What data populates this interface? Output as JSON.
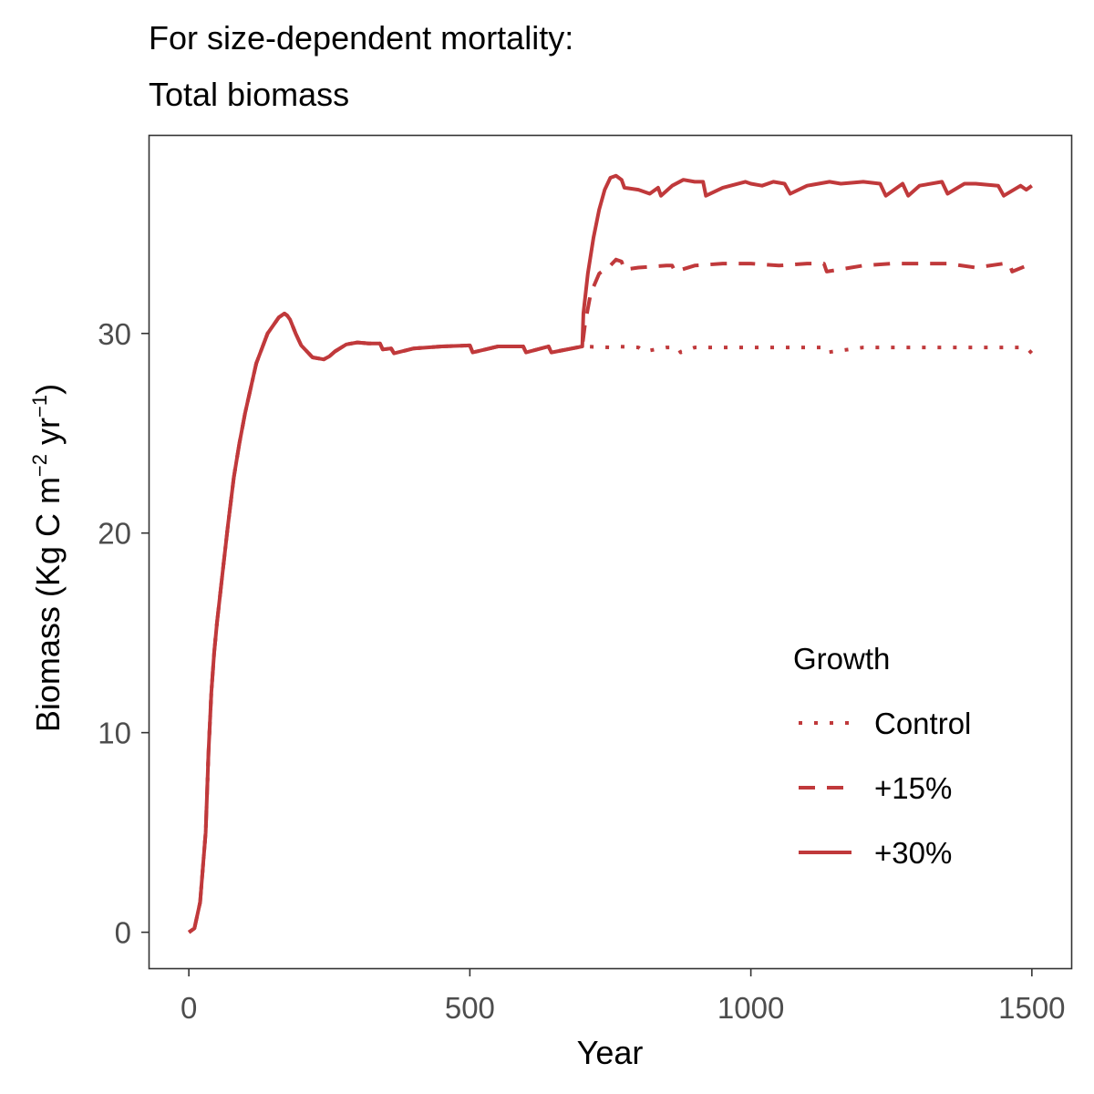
{
  "chart_data": {
    "type": "line",
    "title": "For size-dependent mortality:",
    "subtitle": "Total biomass",
    "xlabel": "Year",
    "ylabel": {
      "text": "Biomass (Kg C m",
      "sup1": "−2",
      "mid": " yr",
      "sup2": "−1",
      "end": ")"
    },
    "xlim": [
      -70,
      1570
    ],
    "ylim": [
      -1.8,
      39.9
    ],
    "xticks": [
      0,
      500,
      1000,
      1500
    ],
    "xtick_labels": [
      "0",
      "500",
      "1000",
      "1500"
    ],
    "yticks": [
      0,
      10,
      20,
      30
    ],
    "ytick_labels": [
      "0",
      "10",
      "20",
      "30"
    ],
    "grid": false,
    "color": "#c0393b",
    "legend": {
      "title": "Growth",
      "position": "right-inside",
      "items": [
        "Control",
        "+15%",
        "+30%"
      ]
    },
    "series": [
      {
        "name": "Control",
        "linestyle": "dotted",
        "x": [
          0,
          10,
          20,
          30,
          35,
          40,
          45,
          50,
          60,
          70,
          80,
          90,
          100,
          120,
          140,
          160,
          170,
          175,
          180,
          190,
          200,
          220,
          240,
          250,
          260,
          280,
          300,
          320,
          340,
          345,
          360,
          365,
          400,
          450,
          500,
          505,
          550,
          595,
          600,
          640,
          645,
          700,
          750,
          760,
          800,
          810,
          850,
          870,
          875,
          900,
          950,
          1000,
          1050,
          1100,
          1130,
          1135,
          1200,
          1250,
          1300,
          1350,
          1400,
          1450,
          1490,
          1500
        ],
        "y": [
          0.0,
          0.2,
          1.5,
          5.0,
          9.0,
          12.0,
          14.0,
          15.5,
          18.0,
          20.5,
          22.8,
          24.5,
          26.0,
          28.5,
          30.0,
          30.8,
          31.0,
          30.9,
          30.7,
          30.0,
          29.4,
          28.8,
          28.7,
          28.85,
          29.1,
          29.45,
          29.55,
          29.5,
          29.5,
          29.2,
          29.25,
          29.0,
          29.25,
          29.35,
          29.4,
          29.05,
          29.35,
          29.35,
          29.05,
          29.35,
          29.05,
          29.35,
          29.3,
          29.35,
          29.3,
          29.1,
          29.3,
          29.3,
          29.05,
          29.3,
          29.3,
          29.3,
          29.3,
          29.3,
          29.3,
          29.05,
          29.3,
          29.3,
          29.3,
          29.3,
          29.3,
          29.3,
          29.3,
          29.0
        ]
      },
      {
        "name": "+15%",
        "linestyle": "dashed",
        "x": [
          0,
          10,
          20,
          30,
          35,
          40,
          45,
          50,
          60,
          70,
          80,
          90,
          100,
          120,
          140,
          160,
          170,
          175,
          180,
          190,
          200,
          220,
          240,
          250,
          260,
          280,
          300,
          320,
          340,
          345,
          360,
          365,
          400,
          450,
          500,
          505,
          550,
          595,
          600,
          640,
          645,
          700,
          705,
          715,
          730,
          750,
          760,
          770,
          775,
          800,
          850,
          860,
          865,
          900,
          950,
          1000,
          1050,
          1100,
          1130,
          1135,
          1200,
          1250,
          1300,
          1350,
          1400,
          1450,
          1460,
          1465,
          1500
        ],
        "y": [
          0.0,
          0.2,
          1.5,
          5.0,
          9.0,
          12.0,
          14.0,
          15.5,
          18.0,
          20.5,
          22.8,
          24.5,
          26.0,
          28.5,
          30.0,
          30.8,
          31.0,
          30.9,
          30.7,
          30.0,
          29.4,
          28.8,
          28.7,
          28.85,
          29.1,
          29.45,
          29.55,
          29.5,
          29.5,
          29.2,
          29.25,
          29.0,
          29.25,
          29.35,
          29.4,
          29.05,
          29.35,
          29.35,
          29.05,
          29.35,
          29.05,
          29.35,
          30.5,
          32.0,
          33.0,
          33.4,
          33.7,
          33.6,
          33.2,
          33.3,
          33.4,
          33.4,
          33.1,
          33.4,
          33.5,
          33.5,
          33.4,
          33.5,
          33.5,
          33.1,
          33.4,
          33.5,
          33.5,
          33.5,
          33.3,
          33.5,
          33.5,
          33.1,
          33.5
        ]
      },
      {
        "name": "+30%",
        "linestyle": "solid",
        "x": [
          0,
          10,
          20,
          30,
          35,
          40,
          45,
          50,
          60,
          70,
          80,
          90,
          100,
          120,
          140,
          160,
          170,
          175,
          180,
          190,
          200,
          220,
          240,
          250,
          260,
          280,
          300,
          320,
          340,
          345,
          360,
          365,
          400,
          450,
          500,
          505,
          550,
          595,
          600,
          640,
          645,
          700,
          702,
          710,
          720,
          730,
          740,
          750,
          760,
          770,
          775,
          800,
          820,
          835,
          840,
          860,
          880,
          900,
          915,
          920,
          950,
          990,
          1000,
          1020,
          1040,
          1060,
          1070,
          1100,
          1140,
          1160,
          1200,
          1230,
          1240,
          1270,
          1280,
          1300,
          1340,
          1350,
          1380,
          1400,
          1440,
          1450,
          1480,
          1490,
          1500
        ],
        "y": [
          0.0,
          0.2,
          1.5,
          5.0,
          9.0,
          12.0,
          14.0,
          15.5,
          18.0,
          20.5,
          22.8,
          24.5,
          26.0,
          28.5,
          30.0,
          30.8,
          31.0,
          30.9,
          30.7,
          30.0,
          29.4,
          28.8,
          28.7,
          28.85,
          29.1,
          29.45,
          29.55,
          29.5,
          29.5,
          29.2,
          29.25,
          29.0,
          29.25,
          29.35,
          29.4,
          29.05,
          29.35,
          29.35,
          29.05,
          29.35,
          29.05,
          29.35,
          31.0,
          33.0,
          34.8,
          36.2,
          37.2,
          37.8,
          37.9,
          37.7,
          37.3,
          37.2,
          37.0,
          37.3,
          36.9,
          37.4,
          37.7,
          37.6,
          37.6,
          36.9,
          37.3,
          37.6,
          37.5,
          37.4,
          37.6,
          37.5,
          37.0,
          37.4,
          37.6,
          37.5,
          37.6,
          37.5,
          36.9,
          37.5,
          36.9,
          37.4,
          37.6,
          37.0,
          37.5,
          37.5,
          37.4,
          36.9,
          37.4,
          37.2,
          37.4
        ]
      }
    ]
  }
}
